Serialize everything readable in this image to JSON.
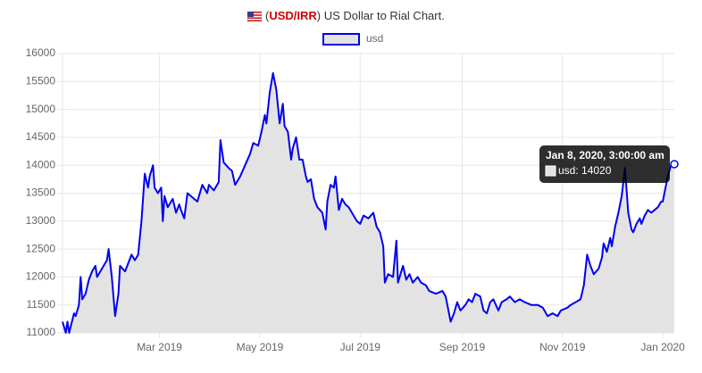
{
  "chart_data": {
    "type": "line",
    "title": [
      "(",
      "USD/IRR",
      ") US Dollar to Rial Chart."
    ],
    "x": [
      "2019-01-01",
      "2019-01-03",
      "2019-01-04",
      "2019-01-05",
      "2019-01-08",
      "2019-01-09",
      "2019-01-11",
      "2019-01-12",
      "2019-01-13",
      "2019-01-15",
      "2019-01-17",
      "2019-01-19",
      "2019-01-21",
      "2019-01-22",
      "2019-01-25",
      "2019-01-28",
      "2019-01-29",
      "2019-01-31",
      "2019-02-02",
      "2019-02-04",
      "2019-02-05",
      "2019-02-08",
      "2019-02-10",
      "2019-02-12",
      "2019-02-14",
      "2019-02-16",
      "2019-02-18",
      "2019-02-20",
      "2019-02-22",
      "2019-02-23",
      "2019-02-25",
      "2019-02-26",
      "2019-02-28",
      "2019-03-02",
      "2019-03-03",
      "2019-03-04",
      "2019-03-06",
      "2019-03-07",
      "2019-03-09",
      "2019-03-11",
      "2019-03-13",
      "2019-03-14",
      "2019-03-16",
      "2019-03-18",
      "2019-03-20",
      "2019-03-22",
      "2019-03-24",
      "2019-03-27",
      "2019-03-30",
      "2019-03-31",
      "2019-04-03",
      "2019-04-06",
      "2019-04-07",
      "2019-04-09",
      "2019-04-12",
      "2019-04-14",
      "2019-04-16",
      "2019-04-19",
      "2019-04-22",
      "2019-04-25",
      "2019-04-27",
      "2019-04-30",
      "2019-05-02",
      "2019-05-04",
      "2019-05-05",
      "2019-05-07",
      "2019-05-09",
      "2019-05-11",
      "2019-05-13",
      "2019-05-15",
      "2019-05-16",
      "2019-05-18",
      "2019-05-20",
      "2019-05-21",
      "2019-05-23",
      "2019-05-25",
      "2019-05-27",
      "2019-05-29",
      "2019-05-30",
      "2019-06-01",
      "2019-06-03",
      "2019-06-05",
      "2019-06-08",
      "2019-06-10",
      "2019-06-11",
      "2019-06-13",
      "2019-06-15",
      "2019-06-16",
      "2019-06-18",
      "2019-06-20",
      "2019-06-22",
      "2019-06-24",
      "2019-06-27",
      "2019-06-29",
      "2019-07-01",
      "2019-07-03",
      "2019-07-06",
      "2019-07-09",
      "2019-07-11",
      "2019-07-13",
      "2019-07-15",
      "2019-07-16",
      "2019-07-18",
      "2019-07-21",
      "2019-07-23",
      "2019-07-24",
      "2019-07-27",
      "2019-07-29",
      "2019-07-31",
      "2019-08-02",
      "2019-08-05",
      "2019-08-07",
      "2019-08-10",
      "2019-08-12",
      "2019-08-16",
      "2019-08-20",
      "2019-08-22",
      "2019-08-25",
      "2019-08-27",
      "2019-08-29",
      "2019-08-31",
      "2019-09-03",
      "2019-09-05",
      "2019-09-07",
      "2019-09-09",
      "2019-09-12",
      "2019-09-14",
      "2019-09-16",
      "2019-09-18",
      "2019-09-20",
      "2019-09-23",
      "2019-09-25",
      "2019-09-28",
      "2019-09-30",
      "2019-10-03",
      "2019-10-06",
      "2019-10-09",
      "2019-10-13",
      "2019-10-17",
      "2019-10-20",
      "2019-10-23",
      "2019-10-26",
      "2019-10-29",
      "2019-10-31",
      "2019-11-04",
      "2019-11-06",
      "2019-11-09",
      "2019-11-12",
      "2019-11-14",
      "2019-11-16",
      "2019-11-18",
      "2019-11-20",
      "2019-11-23",
      "2019-11-25",
      "2019-11-26",
      "2019-11-28",
      "2019-11-30",
      "2019-12-01",
      "2019-12-03",
      "2019-12-05",
      "2019-12-07",
      "2019-12-09",
      "2019-12-11",
      "2019-12-13",
      "2019-12-14",
      "2019-12-16",
      "2019-12-18",
      "2019-12-19",
      "2019-12-21",
      "2019-12-23",
      "2019-12-25",
      "2019-12-27",
      "2019-12-29",
      "2019-12-31",
      "2020-01-01",
      "2020-01-04",
      "2020-01-06",
      "2020-01-08"
    ],
    "series": [
      {
        "name": "usd",
        "color": "#0000ee",
        "fill": "#e3e3e3",
        "values": [
          11200,
          11000,
          11200,
          11000,
          11350,
          11300,
          11500,
          12000,
          11600,
          11700,
          11950,
          12100,
          12200,
          12000,
          12150,
          12300,
          12500,
          12000,
          11300,
          11700,
          12200,
          12100,
          12250,
          12400,
          12300,
          12400,
          13000,
          13850,
          13600,
          13800,
          14000,
          13600,
          13500,
          13600,
          13000,
          13450,
          13250,
          13300,
          13400,
          13150,
          13300,
          13200,
          13050,
          13500,
          13450,
          13400,
          13350,
          13650,
          13500,
          13650,
          13550,
          13700,
          14450,
          14050,
          13950,
          13900,
          13650,
          13800,
          14000,
          14200,
          14400,
          14350,
          14600,
          14900,
          14750,
          15300,
          15650,
          15350,
          14750,
          15100,
          14700,
          14600,
          14100,
          14300,
          14500,
          14100,
          14100,
          13800,
          13700,
          13750,
          13400,
          13250,
          13150,
          12850,
          13350,
          13650,
          13600,
          13800,
          13200,
          13400,
          13300,
          13250,
          13100,
          13000,
          12950,
          13100,
          13050,
          13150,
          12900,
          12800,
          12550,
          11900,
          12050,
          12000,
          12650,
          11900,
          12200,
          11950,
          12050,
          11900,
          12000,
          11900,
          11850,
          11750,
          11700,
          11750,
          11650,
          11200,
          11350,
          11550,
          11400,
          11500,
          11600,
          11550,
          11700,
          11650,
          11400,
          11350,
          11550,
          11600,
          11400,
          11550,
          11600,
          11650,
          11550,
          11600,
          11550,
          11500,
          11500,
          11450,
          11300,
          11350,
          11300,
          11400,
          11450,
          11500,
          11550,
          11600,
          11850,
          12400,
          12200,
          12050,
          12150,
          12350,
          12600,
          12450,
          12700,
          12550,
          12900,
          13150,
          13450,
          13950,
          13150,
          12850,
          12800,
          12950,
          13050,
          12950,
          13100,
          13200,
          13150,
          13200,
          13250,
          13350,
          13350,
          13800,
          14000,
          14020
        ]
      }
    ],
    "xlim": [
      "2019-01-01",
      "2020-01-08"
    ],
    "xticks": [
      {
        "value": "2019-03-01",
        "label": "Mar 2019"
      },
      {
        "value": "2019-05-01",
        "label": "May 2019"
      },
      {
        "value": "2019-07-01",
        "label": "Jul 2019"
      },
      {
        "value": "2019-09-01",
        "label": "Sep 2019"
      },
      {
        "value": "2019-11-01",
        "label": "Nov 2019"
      },
      {
        "value": "2020-01-01",
        "label": "Jan 2020"
      }
    ],
    "ylim": [
      11000,
      16000
    ],
    "yticks": [
      11000,
      11500,
      12000,
      12500,
      13000,
      13500,
      14000,
      14500,
      15000,
      15500,
      16000
    ],
    "grid": true,
    "legend": "top",
    "tooltip": {
      "title": "Jan 8, 2020, 3:00:00 am",
      "text": "usd: 14020"
    }
  }
}
